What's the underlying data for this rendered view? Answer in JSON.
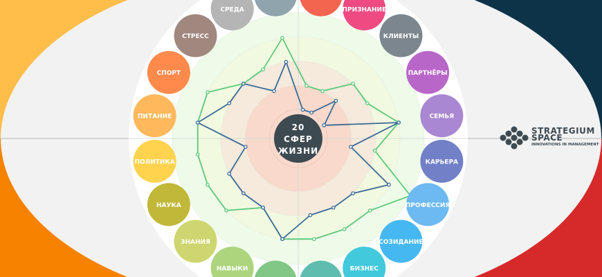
{
  "center_label": [
    "20",
    "СФЕР",
    "ЖИЗНИ"
  ],
  "spheres": [
    {
      "label": "",
      "color": "#f4654f"
    },
    {
      "label": "ПРИЗНАНИЕ",
      "color": "#ef4a82"
    },
    {
      "label": "КЛИЕНТЫ",
      "color": "#7c868e"
    },
    {
      "label": "ПАРТНЁРЫ",
      "color": "#b866c8"
    },
    {
      "label": "СЕМЬЯ",
      "color": "#a987d2"
    },
    {
      "label": "КАРЬЕРА",
      "color": "#7280c8"
    },
    {
      "label": "ПРОФЕССИЯ",
      "color": "#6db9f2"
    },
    {
      "label": "СОЗИДАНИЕ",
      "color": "#45b8f2"
    },
    {
      "label": "БИЗНЕС",
      "color": "#42c9dc"
    },
    {
      "label": "",
      "color": "#5fbdb0"
    },
    {
      "label": "",
      "color": "#82c785"
    },
    {
      "label": "НАВЫКИ",
      "color": "#acd57e"
    },
    {
      "label": "ЗНАНИЯ",
      "color": "#cdd66f"
    },
    {
      "label": "НАУКА",
      "color": "#c1b83a"
    },
    {
      "label": "ПОЛИТИКА",
      "color": "#ffd34e"
    },
    {
      "label": "ПИТАНИЕ",
      "color": "#ffb95c"
    },
    {
      "label": "СПОРТ",
      "color": "#ff8a4c"
    },
    {
      "label": "СТРЕСС",
      "color": "#a1887f"
    },
    {
      "label": "СРЕДА",
      "color": "#b5b5b5"
    },
    {
      "label": "",
      "color": "#90a4ae"
    }
  ],
  "scale_max": 5,
  "series": [
    {
      "color": "#5cc97d",
      "values": [
        2,
        2,
        3,
        3,
        4,
        3,
        5,
        4,
        4,
        4,
        4,
        3,
        4,
        4,
        4,
        4,
        4,
        3,
        3,
        4
      ]
    },
    {
      "color": "#3a6a9a",
      "values": [
        1,
        1,
        2,
        1,
        4,
        2,
        4,
        3,
        3,
        3,
        4,
        3,
        3,
        3,
        2,
        4,
        3,
        3,
        2,
        3
      ]
    }
  ],
  "rings": [
    "#eefbe9",
    "#f1fae0",
    "#f5eadb",
    "#f8d9cb"
  ],
  "background": {
    "top_left": "#ffbd4a",
    "bottom_left": "#f78200",
    "top_right": "#0d3349",
    "bottom_right": "#d62a2a",
    "ellipse": "#f2f2f2"
  },
  "logo": {
    "line1": "STRATEGIUM",
    "line2": "SPACE",
    "line3": "INNOVATIONS IN MANAGEMENT"
  }
}
